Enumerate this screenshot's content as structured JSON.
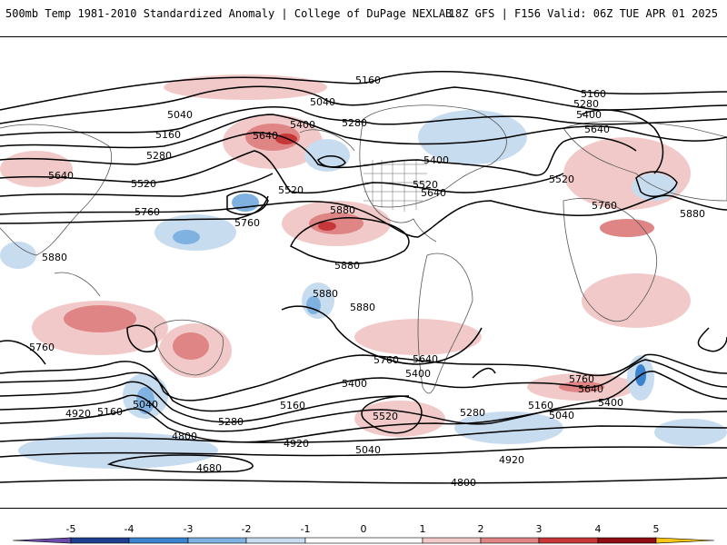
{
  "header": {
    "title": "500mb Temp 1981-2010 Standardized Anomaly | College of DuPage NEXLAB",
    "run_info": "18Z GFS | F156 Valid: 06Z TUE APR 01 2025"
  },
  "map": {
    "contour_labels": [
      "5160",
      "5040",
      "5160",
      "5280",
      "5400",
      "5640",
      "5040",
      "5160",
      "5280",
      "5520",
      "5640",
      "5400",
      "5280",
      "5520",
      "5640",
      "5760",
      "5880",
      "5520",
      "5760",
      "5880",
      "5880",
      "5880",
      "5880",
      "5760",
      "5760",
      "5880",
      "5400",
      "5640",
      "5520",
      "5280",
      "5040",
      "5160",
      "4920",
      "5160",
      "4800",
      "4680",
      "4920",
      "5040",
      "5400",
      "5520",
      "5280",
      "5160",
      "5040",
      "4920",
      "5760",
      "5640",
      "5400",
      "5640",
      "5760",
      "4800",
      "5400"
    ]
  },
  "colorbar": {
    "ticks": [
      "-5",
      "-4",
      "-3",
      "-2",
      "-1",
      "0",
      "1",
      "2",
      "3",
      "4",
      "5"
    ],
    "colors": {
      "below_-5": "#6a4ca8",
      "-5_-4": "#1e3f8f",
      "-4_-3": "#3a83cf",
      "-3_-2": "#7fb2e0",
      "-2_-1": "#c8dcf0",
      "-1_1": "#ffffff",
      "1_2": "#f2c9c9",
      "2_3": "#e08585",
      "3_4": "#c7373a",
      "4_5": "#8e0d12",
      "above_5": "#f5c518"
    }
  }
}
